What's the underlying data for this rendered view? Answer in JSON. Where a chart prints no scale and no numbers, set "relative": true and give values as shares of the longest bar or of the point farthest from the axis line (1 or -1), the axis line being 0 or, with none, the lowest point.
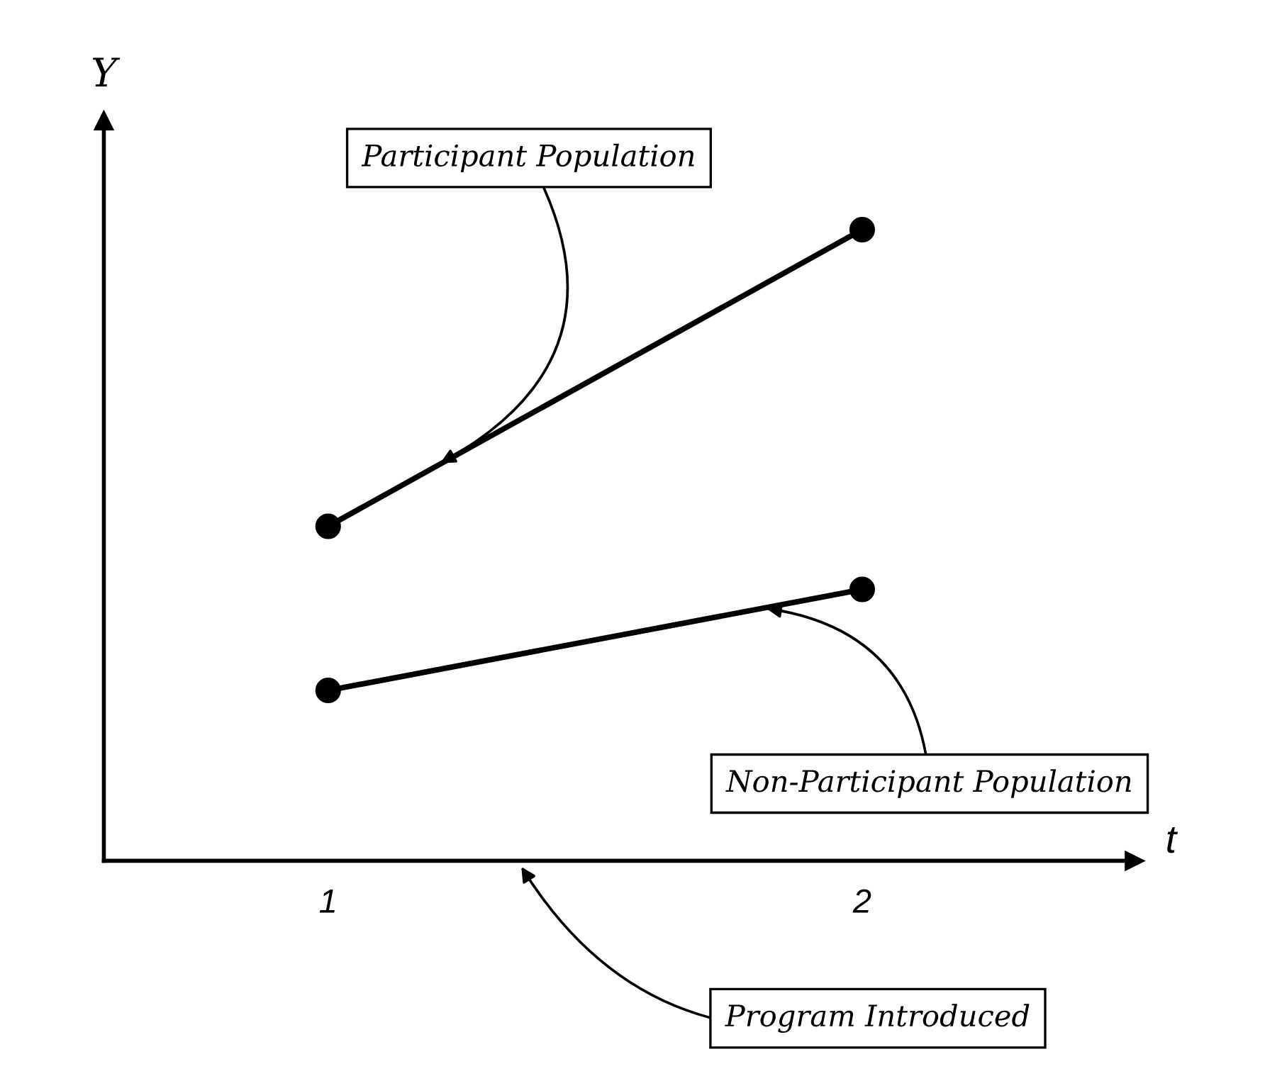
{
  "chart_data": {
    "type": "line",
    "relative": true,
    "xlabel": "t",
    "ylabel": "Y",
    "x": [
      1,
      2
    ],
    "xlim": [
      0.58,
      2.51
    ],
    "xticks": [
      1,
      2
    ],
    "tick_labels": "x",
    "series": [
      {
        "color": "#000000",
        "values": [
          0.53,
          1
        ]
      },
      {
        "color": "#000000",
        "values": [
          0.27,
          0.43
        ]
      }
    ],
    "marker": "circle",
    "line_style": "solid",
    "grid": false,
    "legend": false,
    "annotations": [
      {
        "text": "Participant Population",
        "x": 1.21,
        "y": 0.63
      },
      {
        "text": "Non-Participant Population",
        "x": 1.82,
        "y": 0.4
      },
      "Program Introduced"
    ]
  }
}
